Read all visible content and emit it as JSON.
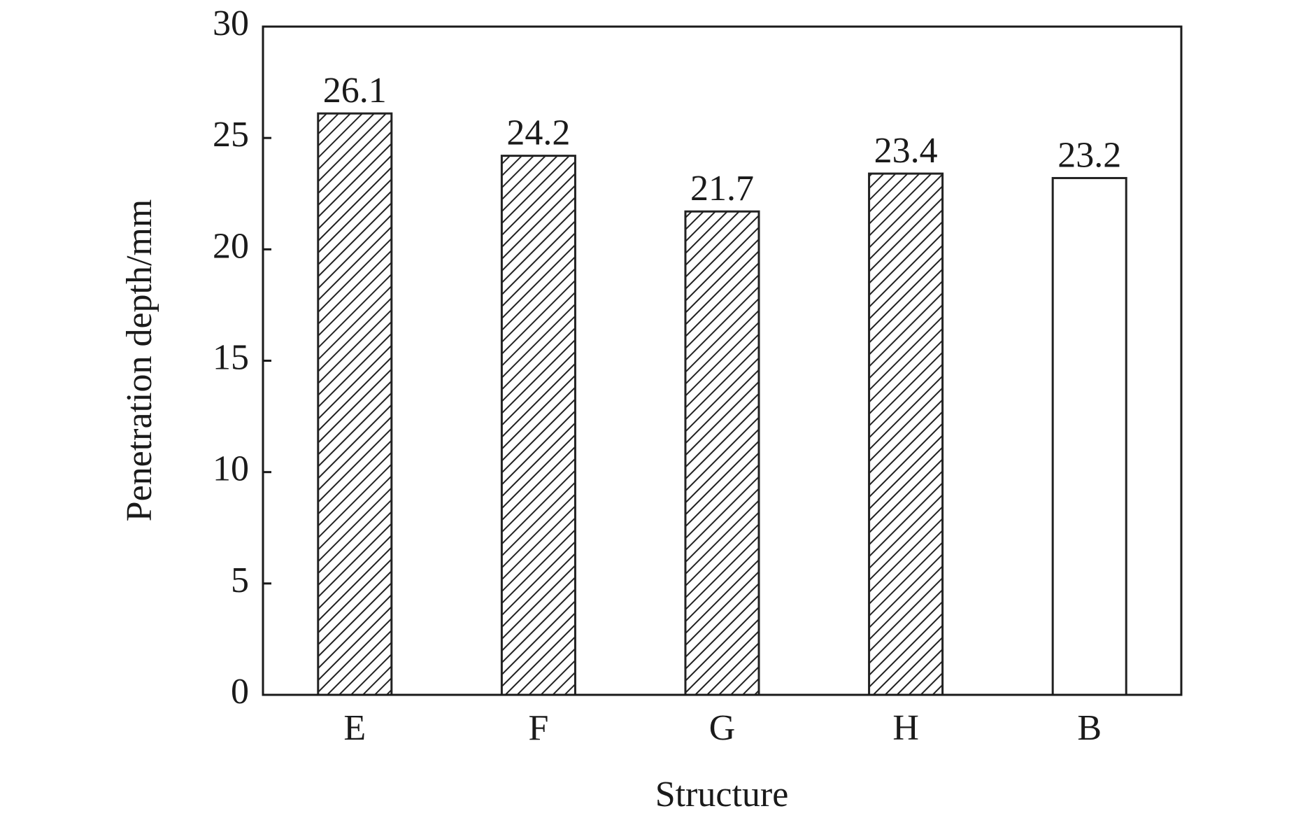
{
  "chart_data": {
    "type": "bar",
    "x_label": "Structure",
    "y_label": "Penetration depth/mm",
    "categories": [
      "E",
      "F",
      "G",
      "H",
      "B"
    ],
    "values": [
      26.1,
      24.2,
      21.7,
      23.4,
      23.2
    ],
    "hatched": [
      true,
      true,
      true,
      true,
      false
    ],
    "color": "#222222",
    "ylim": [
      0,
      30
    ],
    "yticks": [
      0,
      5,
      10,
      15,
      20,
      25,
      30
    ],
    "grid": false
  }
}
